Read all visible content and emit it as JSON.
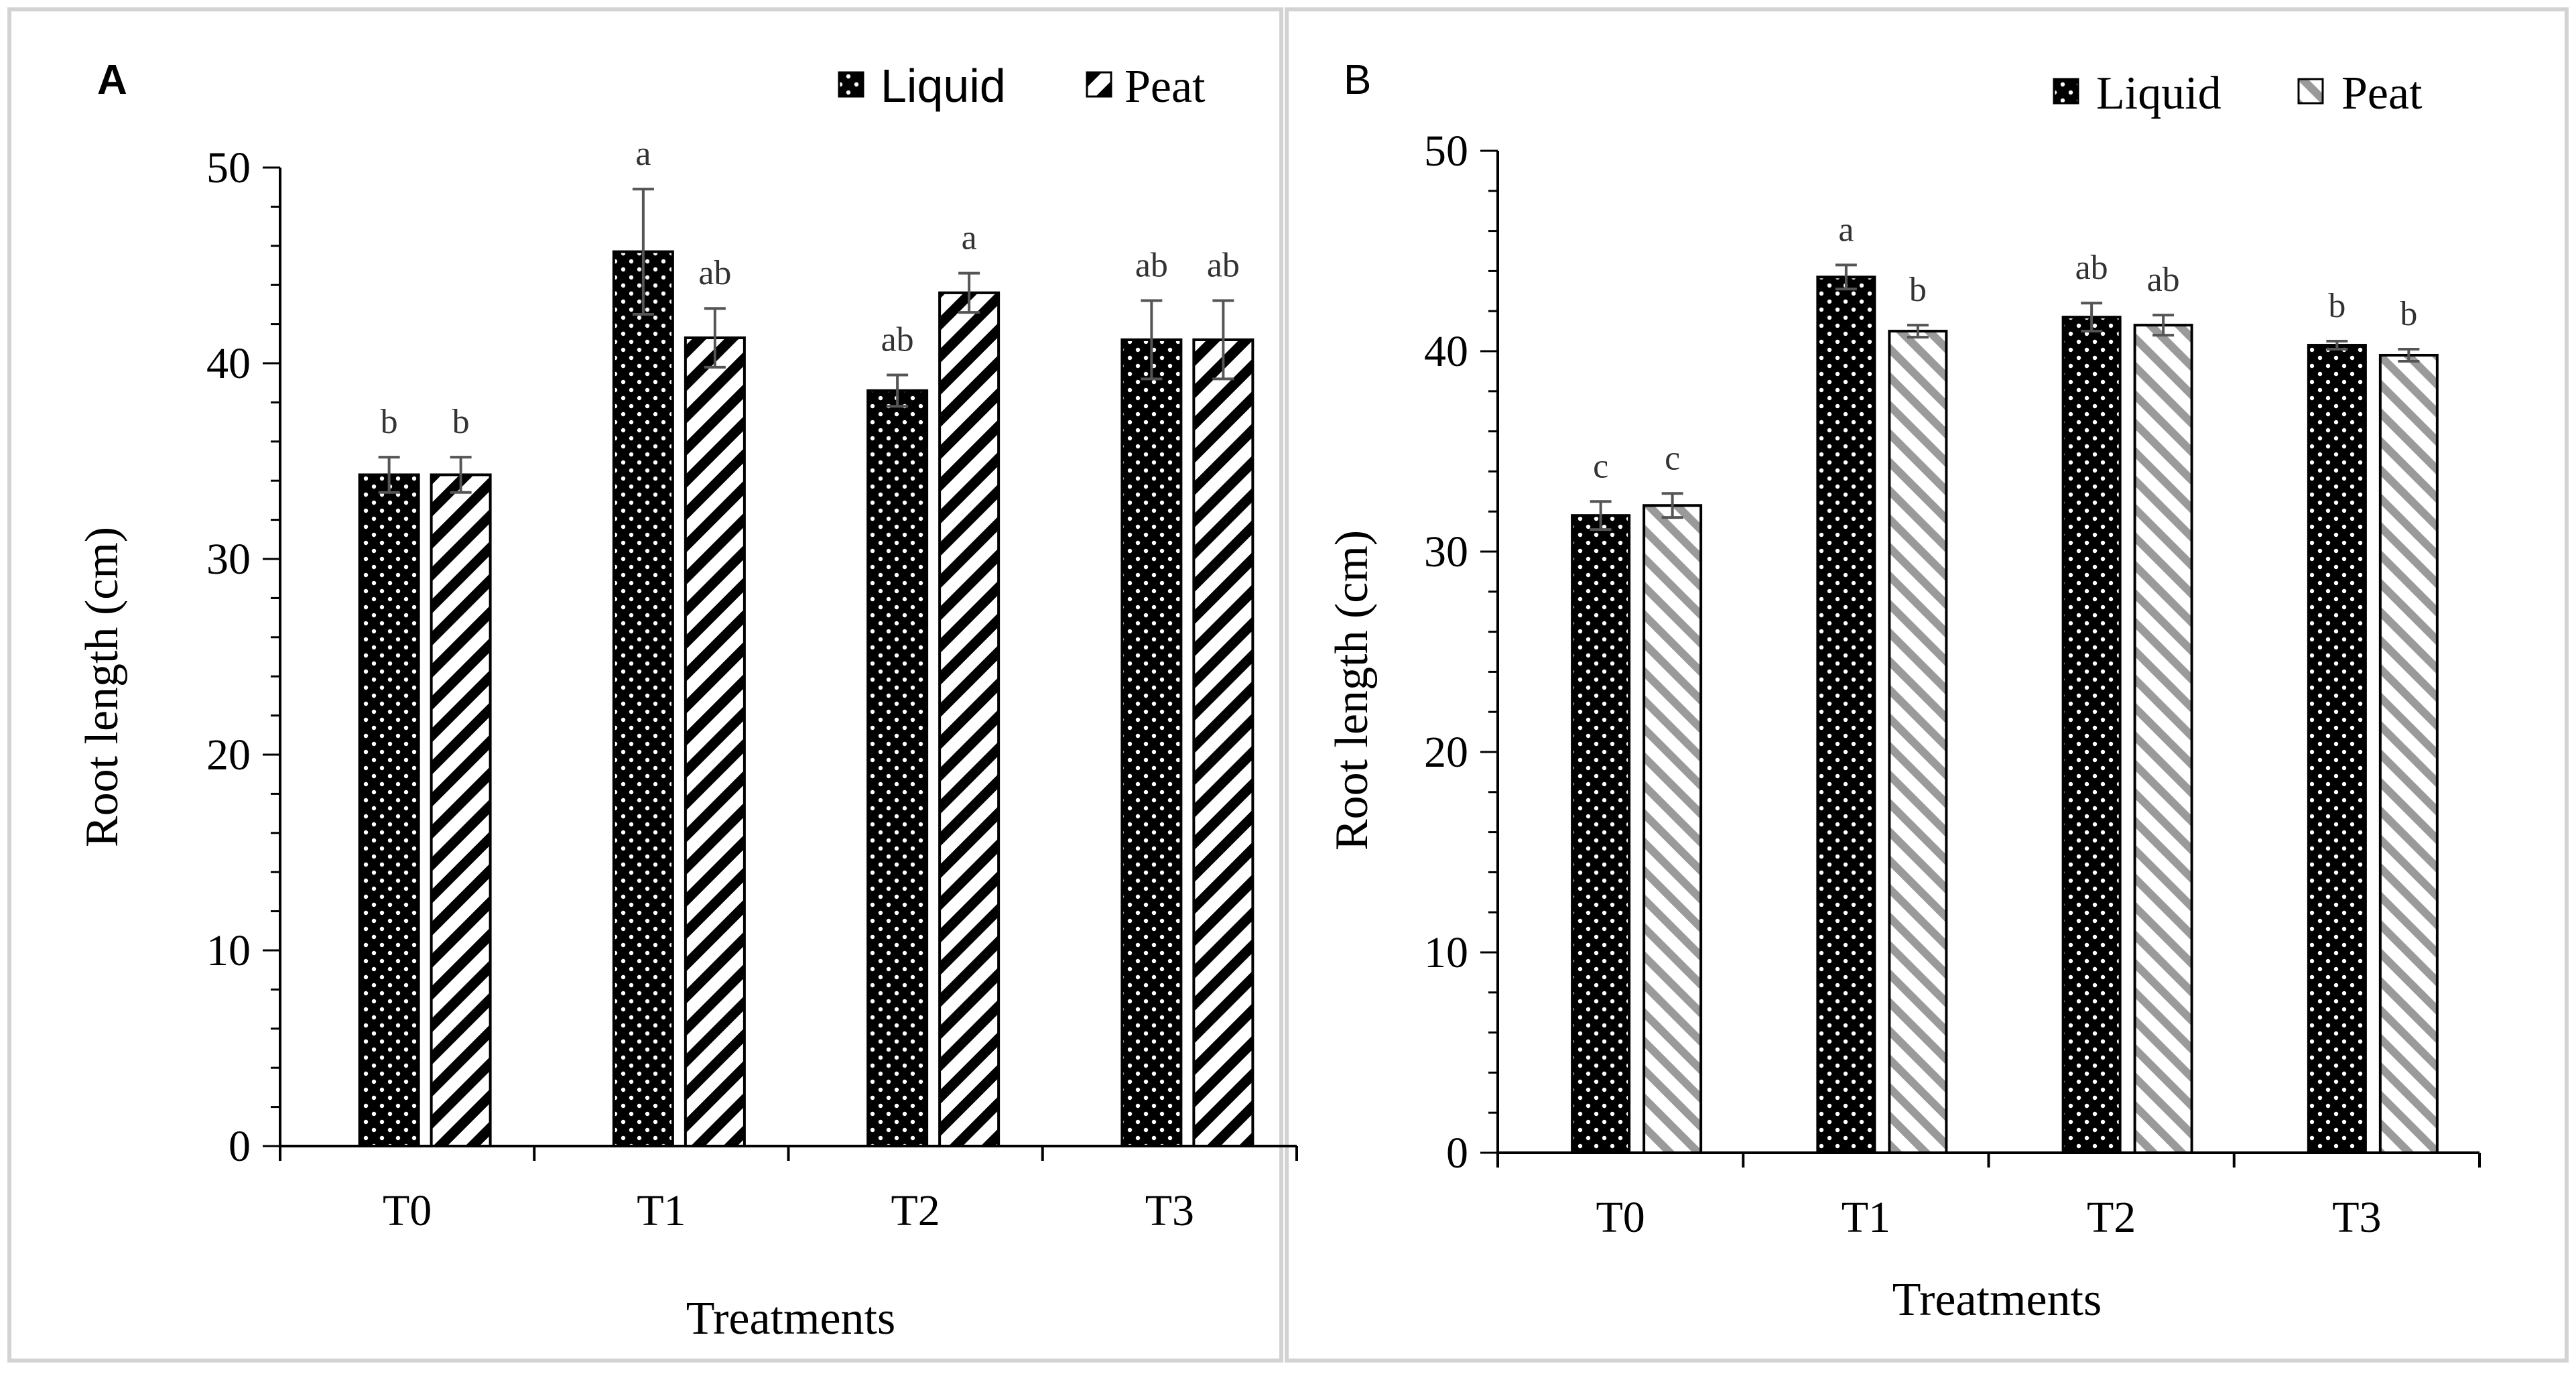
{
  "chart_data": [
    {
      "type": "bar",
      "panel": "A",
      "categories": [
        "T0",
        "T1",
        "T2",
        "T3"
      ],
      "series": [
        {
          "name": "Liquid",
          "values": [
            34.3,
            45.7,
            38.6,
            41.2
          ],
          "errors": [
            0.9,
            3.2,
            0.8,
            2.0
          ],
          "letters": [
            "b",
            "a",
            "ab",
            "ab"
          ]
        },
        {
          "name": "Peat",
          "values": [
            34.3,
            41.3,
            43.6,
            41.2
          ],
          "errors": [
            0.9,
            1.5,
            1.0,
            2.0
          ],
          "letters": [
            "b",
            "ab",
            "a",
            "ab"
          ]
        }
      ],
      "xlabel": "Treatments",
      "ylabel": "Root  length (cm)",
      "ylim": [
        0,
        50
      ],
      "yticks": [
        "0",
        "10",
        "20",
        "30",
        "40",
        "50"
      ],
      "legend_position": "top-right"
    },
    {
      "type": "bar",
      "panel": "B",
      "categories": [
        "T0",
        "T1",
        "T2",
        "T3"
      ],
      "series": [
        {
          "name": "Liquid",
          "values": [
            31.8,
            43.7,
            41.7,
            40.3
          ],
          "errors": [
            0.7,
            0.6,
            0.7,
            0.2
          ],
          "letters": [
            "c",
            "a",
            "ab",
            "b"
          ]
        },
        {
          "name": "Peat",
          "values": [
            32.3,
            41.0,
            41.3,
            39.8
          ],
          "errors": [
            0.6,
            0.3,
            0.5,
            0.3
          ],
          "letters": [
            "c",
            "b",
            "ab",
            "b"
          ]
        }
      ],
      "xlabel": "Treatments",
      "ylabel": "Root length (cm)",
      "ylim": [
        0,
        50
      ],
      "yticks": [
        "0",
        "10",
        "20",
        "30",
        "40",
        "50"
      ],
      "legend_position": "top-right"
    }
  ],
  "colors": {
    "bar_fill": "#000000",
    "dots": "#ffffff",
    "hatch_a": "#000000",
    "hatch_b": "#9a9a9a",
    "error_bar": "#555555",
    "axis": "#000000",
    "frame": "#d3d3d3"
  }
}
